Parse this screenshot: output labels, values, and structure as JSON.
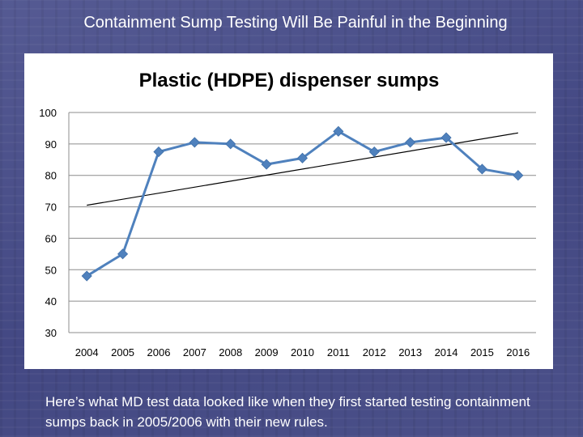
{
  "slide": {
    "title": "Containment Sump Testing Will Be Painful in the Beginning",
    "caption": "Here’s what MD test data looked like when they first started testing containment sumps back in 2005/2006 with their new rules."
  },
  "colors": {
    "series": "#4f81bd",
    "trendline": "#000000",
    "gridline": "#8c8c8c",
    "chart_title": "#000000"
  },
  "chart_data": {
    "type": "line",
    "title": "Plastic (HDPE) dispenser sumps",
    "xlabel": "",
    "ylabel": "",
    "categories": [
      "2004",
      "2005",
      "2006",
      "2007",
      "2008",
      "2009",
      "2010",
      "2011",
      "2012",
      "2013",
      "2014",
      "2015",
      "2016"
    ],
    "series": [
      {
        "values": [
          48,
          55,
          87.5,
          90.5,
          90,
          83.5,
          85.5,
          94,
          87.5,
          90.5,
          92,
          82,
          80
        ],
        "marker": "diamond"
      }
    ],
    "trendline": {
      "type": "linear",
      "start": 70.5,
      "end": 93.5
    },
    "ylim": [
      30,
      100
    ],
    "yticks": [
      30,
      40,
      50,
      60,
      70,
      80,
      90,
      100
    ],
    "grid": true,
    "legend": "none"
  }
}
